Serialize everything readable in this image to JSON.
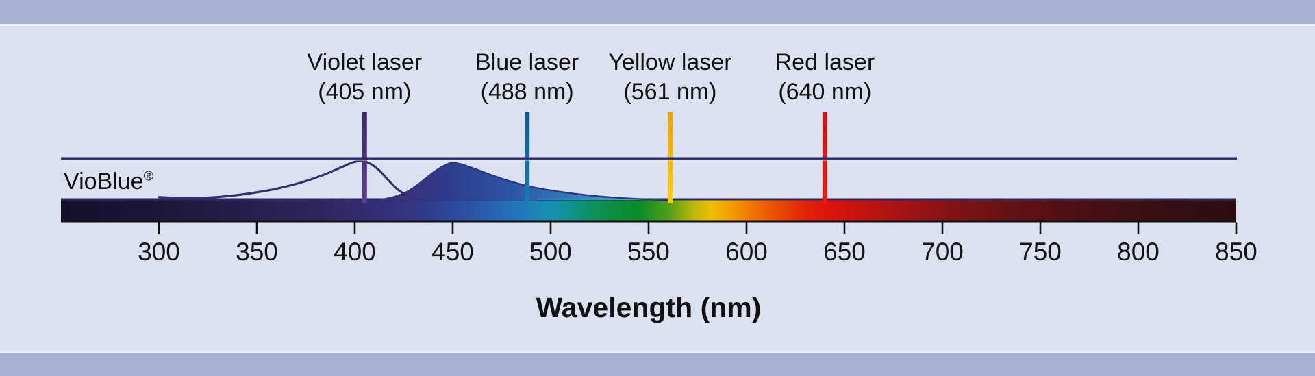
{
  "dye": {
    "label": "VioBlue",
    "registered_mark": "®"
  },
  "lasers": [
    {
      "name": "Violet laser",
      "wavelength_label": "(405 nm)",
      "nm": 405,
      "color": "#4e3184",
      "color_top": "#3e2768",
      "color_bottom": "#5c3c94"
    },
    {
      "name": "Blue laser",
      "wavelength_label": "(488 nm)",
      "nm": 488,
      "color": "#17689e",
      "color_top": "#135a88",
      "color_bottom": "#1b7ab2"
    },
    {
      "name": "Yellow laser",
      "wavelength_label": "(561 nm)",
      "nm": 561,
      "color": "#f7c108",
      "color_top": "#eca404",
      "color_bottom": "#fdd007"
    },
    {
      "name": "Red laser",
      "wavelength_label": "(640 nm)",
      "nm": 640,
      "color": "#df1511",
      "color_top": "#cb1010",
      "color_bottom": "#ec1a0e"
    }
  ],
  "axis": {
    "label": "Wavelength (nm)",
    "tick_values": [
      300,
      350,
      400,
      450,
      500,
      550,
      600,
      650,
      700,
      750,
      800,
      850
    ],
    "min_nm": 250,
    "max_nm": 850
  },
  "colors": {
    "band": "#a6b0d5",
    "background": "#dce1ef",
    "frame_line": "#2b2a66",
    "axis_line": "#101010",
    "text": "#111111",
    "excitation_stroke": "#37306e",
    "emission_outline": "#31337c"
  },
  "chart_data": {
    "type": "area",
    "title": "VioBlue excitation and emission spectra with flow-cytometry laser lines",
    "xlabel": "Wavelength (nm)",
    "xlim": [
      250,
      850
    ],
    "x_ticks": [
      300,
      350,
      400,
      450,
      500,
      550,
      600,
      650,
      700,
      750,
      800,
      850
    ],
    "ylim": [
      0,
      1
    ],
    "grid": false,
    "legend_position": "none",
    "laser_lines_nm": [
      405,
      488,
      561,
      640
    ],
    "series": [
      {
        "name": "VioBlue excitation",
        "style": "line",
        "peak_nm": 401,
        "points": [
          [
            300,
            0.07
          ],
          [
            312,
            0.045
          ],
          [
            326,
            0.06
          ],
          [
            342,
            0.13
          ],
          [
            358,
            0.25
          ],
          [
            372,
            0.41
          ],
          [
            384,
            0.6
          ],
          [
            393,
            0.78
          ],
          [
            399,
            0.9
          ],
          [
            403,
            0.93
          ],
          [
            407,
            0.89
          ],
          [
            412,
            0.73
          ],
          [
            417,
            0.48
          ],
          [
            422,
            0.25
          ],
          [
            427,
            0.1
          ],
          [
            431,
            0.03
          ],
          [
            434,
            0.005
          ]
        ]
      },
      {
        "name": "VioBlue emission",
        "style": "filled-area",
        "peak_nm": 449,
        "points": [
          [
            413,
            0.01
          ],
          [
            419,
            0.06
          ],
          [
            426,
            0.18
          ],
          [
            432,
            0.36
          ],
          [
            439,
            0.62
          ],
          [
            444,
            0.78
          ],
          [
            449,
            0.885
          ],
          [
            454,
            0.86
          ],
          [
            461,
            0.75
          ],
          [
            469,
            0.61
          ],
          [
            477,
            0.48
          ],
          [
            486,
            0.36
          ],
          [
            495,
            0.27
          ],
          [
            506,
            0.19
          ],
          [
            517,
            0.125
          ],
          [
            528,
            0.075
          ],
          [
            539,
            0.04
          ],
          [
            549,
            0.016
          ],
          [
            556,
            0.004
          ],
          [
            560,
            0.0
          ]
        ],
        "fill_gradient": [
          {
            "offset": 0.0,
            "color": "#413070"
          },
          {
            "offset": 0.22,
            "color": "#31398a"
          },
          {
            "offset": 0.45,
            "color": "#2c55a4"
          },
          {
            "offset": 0.65,
            "color": "#2f7ab9"
          },
          {
            "offset": 0.82,
            "color": "#3f9ccb"
          },
          {
            "offset": 1.0,
            "color": "#5cb6da"
          }
        ]
      }
    ],
    "spectrum_bar": {
      "range_nm": [
        250,
        850
      ],
      "stops": [
        {
          "nm": 250,
          "color": "#14102a"
        },
        {
          "nm": 300,
          "color": "#1d1737"
        },
        {
          "nm": 350,
          "color": "#272050"
        },
        {
          "nm": 375,
          "color": "#2c2459"
        },
        {
          "nm": 400,
          "color": "#342a6c"
        },
        {
          "nm": 418,
          "color": "#34307a"
        },
        {
          "nm": 438,
          "color": "#303c8d"
        },
        {
          "nm": 458,
          "color": "#2b51a2"
        },
        {
          "nm": 472,
          "color": "#2766b1"
        },
        {
          "nm": 488,
          "color": "#217cbc"
        },
        {
          "nm": 500,
          "color": "#1691b2"
        },
        {
          "nm": 514,
          "color": "#10917c"
        },
        {
          "nm": 528,
          "color": "#0d8f4a"
        },
        {
          "nm": 545,
          "color": "#0a8c28"
        },
        {
          "nm": 560,
          "color": "#4f9e18"
        },
        {
          "nm": 572,
          "color": "#b7b408"
        },
        {
          "nm": 582,
          "color": "#eebe02"
        },
        {
          "nm": 592,
          "color": "#f29e02"
        },
        {
          "nm": 604,
          "color": "#f07102"
        },
        {
          "nm": 616,
          "color": "#ea4a04"
        },
        {
          "nm": 630,
          "color": "#e22408"
        },
        {
          "nm": 642,
          "color": "#dc140c"
        },
        {
          "nm": 658,
          "color": "#c51311"
        },
        {
          "nm": 678,
          "color": "#a71315"
        },
        {
          "nm": 702,
          "color": "#871316"
        },
        {
          "nm": 735,
          "color": "#641115"
        },
        {
          "nm": 775,
          "color": "#491014"
        },
        {
          "nm": 815,
          "color": "#360f12"
        },
        {
          "nm": 850,
          "color": "#2c0e10"
        }
      ]
    }
  }
}
